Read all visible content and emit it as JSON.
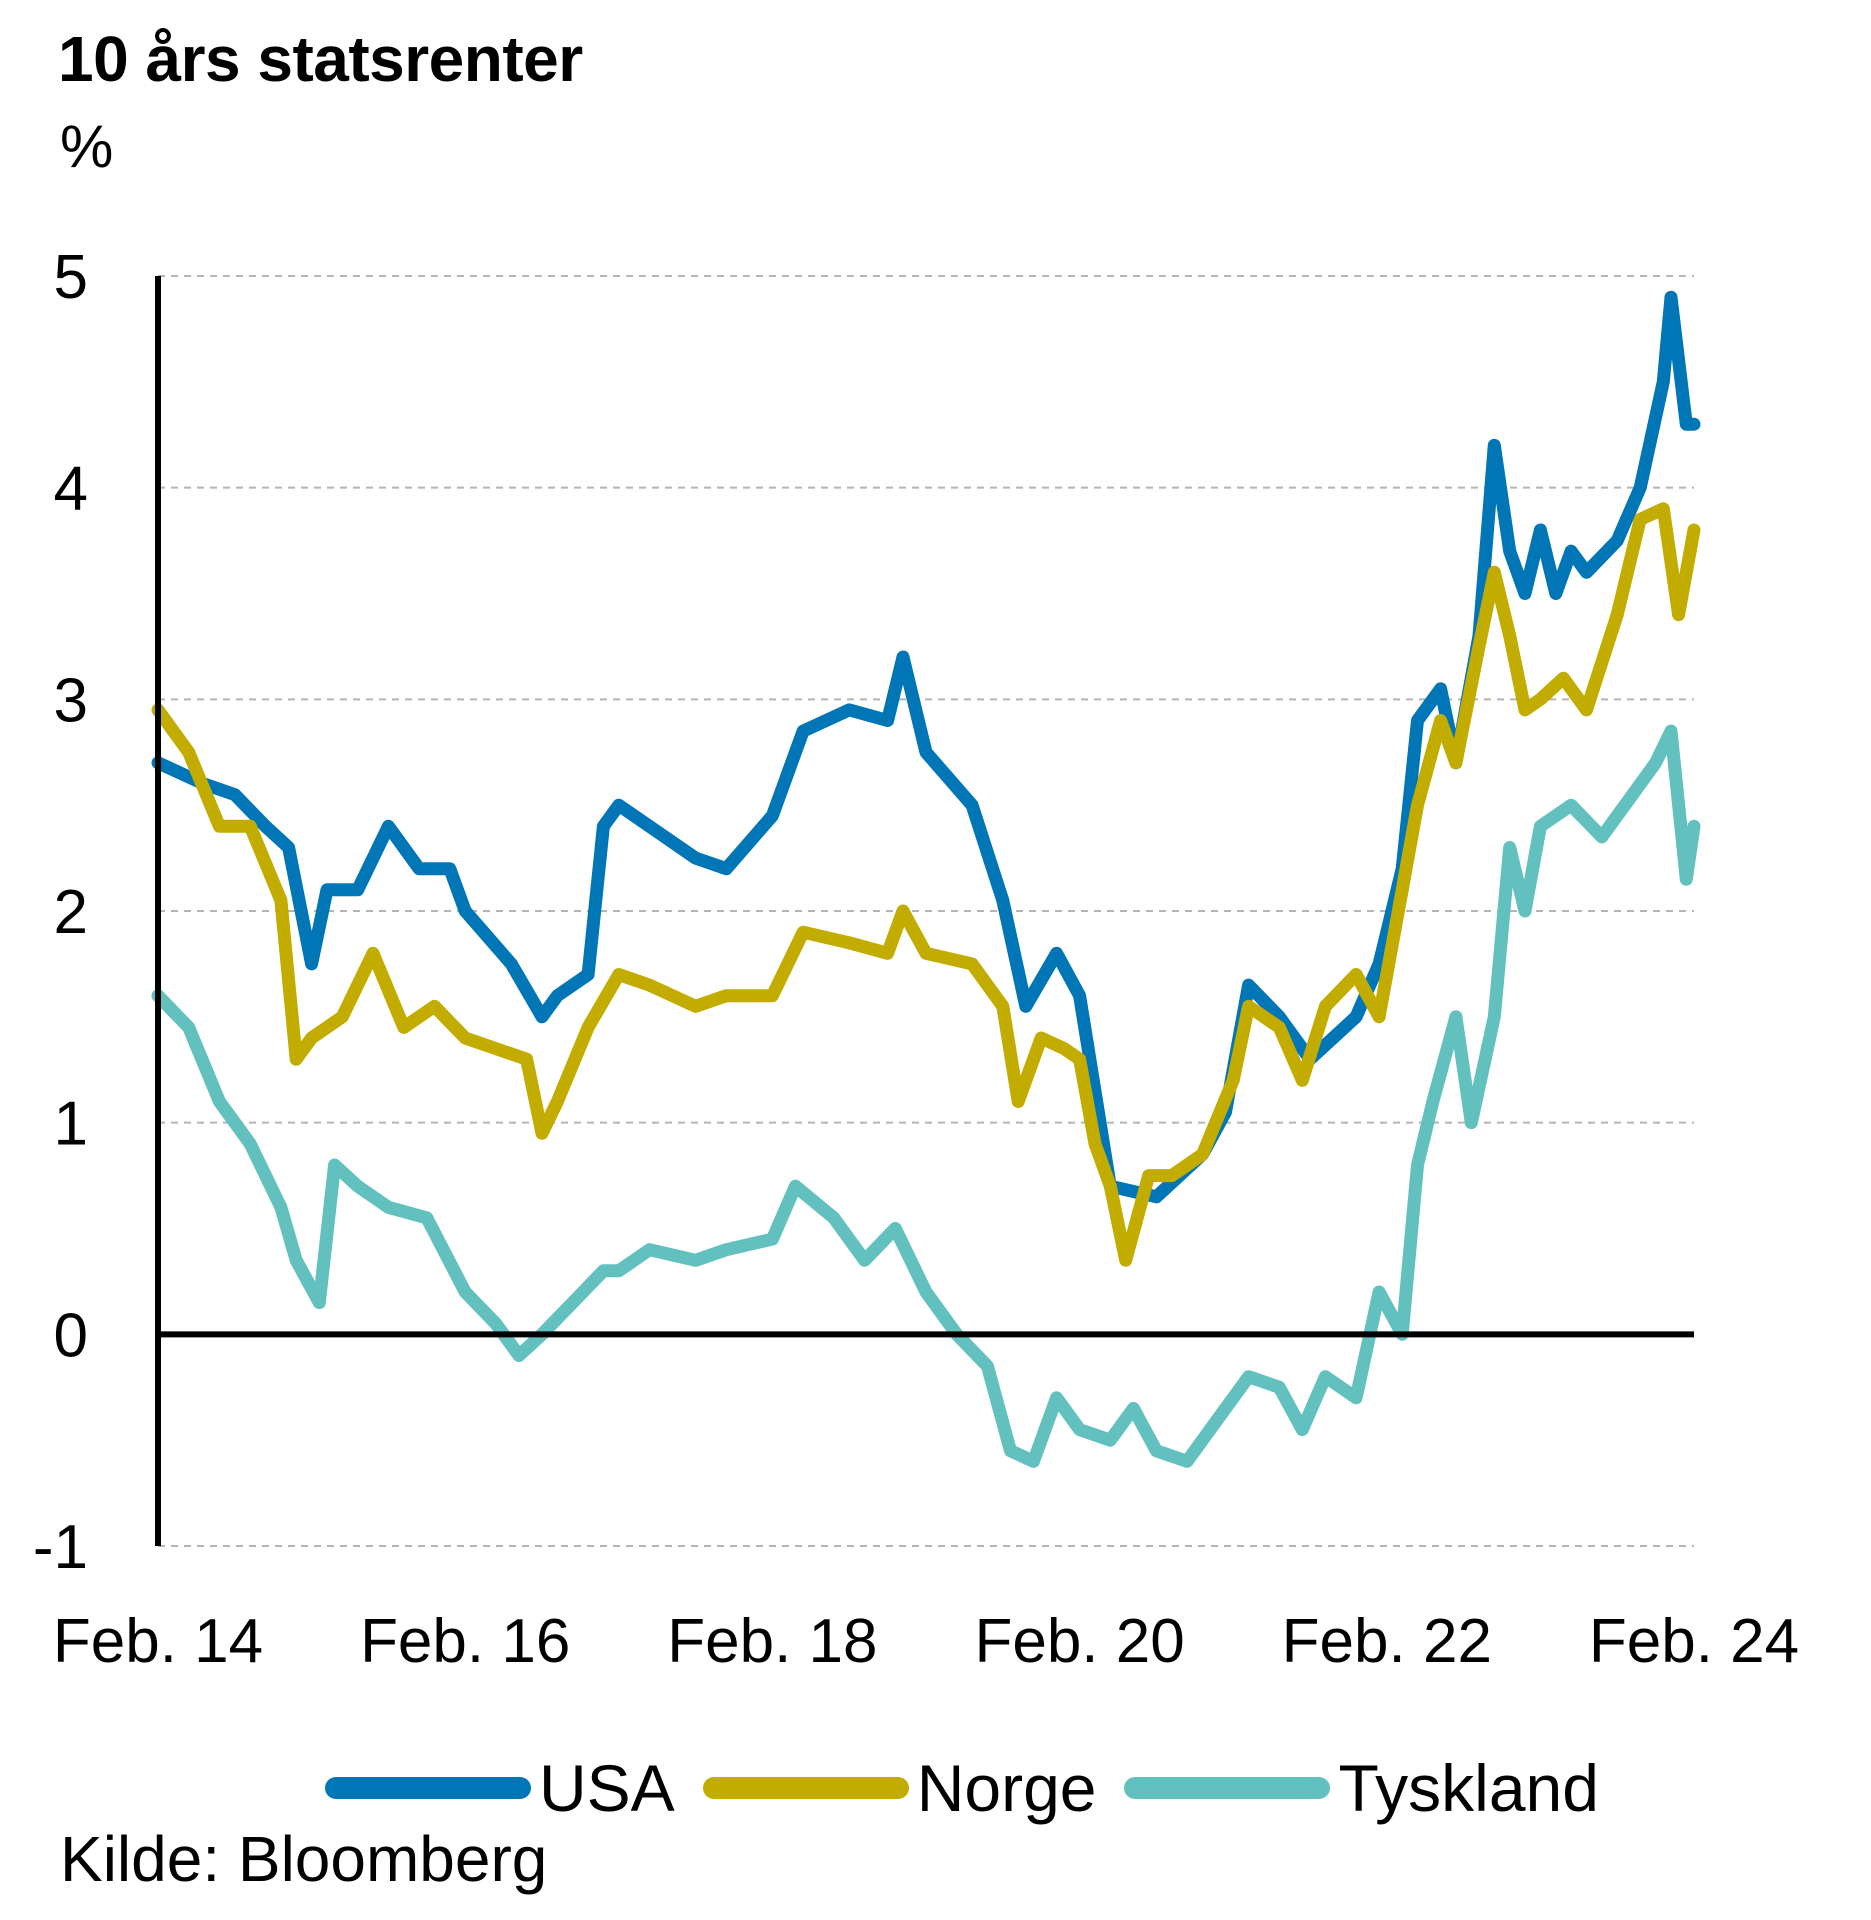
{
  "chart_data": {
    "type": "line",
    "title": "10 års statsrenter",
    "ylabel": "%",
    "xlabel": "",
    "yticks": [
      "5",
      "4",
      "3",
      "2",
      "1",
      "0",
      "-1"
    ],
    "ylim": [
      -1,
      5
    ],
    "xticks": [
      "Feb. 14",
      "Feb. 16",
      "Feb. 18",
      "Feb. 20",
      "Feb. 22",
      "Feb. 24"
    ],
    "xlim": [
      2014.0,
      2024.0
    ],
    "grid": "horizontal dashed",
    "legend_position": "bottom",
    "series": [
      {
        "name": "USA",
        "color": "#0076b6",
        "points": [
          [
            2014.0,
            2.7
          ],
          [
            2014.3,
            2.6
          ],
          [
            2014.5,
            2.55
          ],
          [
            2014.7,
            2.4
          ],
          [
            2014.85,
            2.3
          ],
          [
            2015.0,
            1.75
          ],
          [
            2015.1,
            2.1
          ],
          [
            2015.3,
            2.1
          ],
          [
            2015.5,
            2.4
          ],
          [
            2015.7,
            2.2
          ],
          [
            2015.9,
            2.2
          ],
          [
            2016.0,
            2.0
          ],
          [
            2016.3,
            1.75
          ],
          [
            2016.5,
            1.5
          ],
          [
            2016.6,
            1.6
          ],
          [
            2016.8,
            1.7
          ],
          [
            2016.9,
            2.4
          ],
          [
            2017.0,
            2.5
          ],
          [
            2017.2,
            2.4
          ],
          [
            2017.5,
            2.25
          ],
          [
            2017.7,
            2.2
          ],
          [
            2018.0,
            2.45
          ],
          [
            2018.2,
            2.85
          ],
          [
            2018.5,
            2.95
          ],
          [
            2018.75,
            2.9
          ],
          [
            2018.85,
            3.2
          ],
          [
            2019.0,
            2.75
          ],
          [
            2019.3,
            2.5
          ],
          [
            2019.5,
            2.05
          ],
          [
            2019.65,
            1.55
          ],
          [
            2019.85,
            1.8
          ],
          [
            2020.0,
            1.6
          ],
          [
            2020.2,
            0.7
          ],
          [
            2020.5,
            0.65
          ],
          [
            2020.8,
            0.85
          ],
          [
            2020.95,
            1.05
          ],
          [
            2021.1,
            1.65
          ],
          [
            2021.3,
            1.5
          ],
          [
            2021.5,
            1.3
          ],
          [
            2021.8,
            1.5
          ],
          [
            2021.95,
            1.75
          ],
          [
            2022.1,
            2.2
          ],
          [
            2022.2,
            2.9
          ],
          [
            2022.35,
            3.05
          ],
          [
            2022.45,
            2.7
          ],
          [
            2022.6,
            3.3
          ],
          [
            2022.7,
            4.2
          ],
          [
            2022.8,
            3.7
          ],
          [
            2022.9,
            3.5
          ],
          [
            2023.0,
            3.8
          ],
          [
            2023.1,
            3.5
          ],
          [
            2023.2,
            3.7
          ],
          [
            2023.3,
            3.6
          ],
          [
            2023.5,
            3.75
          ],
          [
            2023.65,
            4.0
          ],
          [
            2023.8,
            4.5
          ],
          [
            2023.85,
            4.9
          ],
          [
            2023.95,
            4.3
          ],
          [
            2024.0,
            4.3
          ]
        ]
      },
      {
        "name": "Norge",
        "color": "#c2ac00",
        "points": [
          [
            2014.0,
            2.95
          ],
          [
            2014.2,
            2.75
          ],
          [
            2014.4,
            2.4
          ],
          [
            2014.6,
            2.4
          ],
          [
            2014.8,
            2.05
          ],
          [
            2014.9,
            1.3
          ],
          [
            2015.0,
            1.4
          ],
          [
            2015.2,
            1.5
          ],
          [
            2015.4,
            1.8
          ],
          [
            2015.6,
            1.45
          ],
          [
            2015.8,
            1.55
          ],
          [
            2016.0,
            1.4
          ],
          [
            2016.2,
            1.35
          ],
          [
            2016.4,
            1.3
          ],
          [
            2016.5,
            0.95
          ],
          [
            2016.6,
            1.1
          ],
          [
            2016.8,
            1.45
          ],
          [
            2017.0,
            1.7
          ],
          [
            2017.2,
            1.65
          ],
          [
            2017.5,
            1.55
          ],
          [
            2017.7,
            1.6
          ],
          [
            2018.0,
            1.6
          ],
          [
            2018.2,
            1.9
          ],
          [
            2018.5,
            1.85
          ],
          [
            2018.75,
            1.8
          ],
          [
            2018.85,
            2.0
          ],
          [
            2019.0,
            1.8
          ],
          [
            2019.3,
            1.75
          ],
          [
            2019.5,
            1.55
          ],
          [
            2019.6,
            1.1
          ],
          [
            2019.75,
            1.4
          ],
          [
            2019.9,
            1.35
          ],
          [
            2020.0,
            1.3
          ],
          [
            2020.1,
            0.9
          ],
          [
            2020.2,
            0.7
          ],
          [
            2020.3,
            0.35
          ],
          [
            2020.45,
            0.75
          ],
          [
            2020.6,
            0.75
          ],
          [
            2020.8,
            0.85
          ],
          [
            2021.0,
            1.2
          ],
          [
            2021.1,
            1.55
          ],
          [
            2021.3,
            1.45
          ],
          [
            2021.45,
            1.2
          ],
          [
            2021.6,
            1.55
          ],
          [
            2021.8,
            1.7
          ],
          [
            2021.95,
            1.5
          ],
          [
            2022.1,
            2.1
          ],
          [
            2022.2,
            2.5
          ],
          [
            2022.35,
            2.9
          ],
          [
            2022.45,
            2.7
          ],
          [
            2022.6,
            3.25
          ],
          [
            2022.7,
            3.6
          ],
          [
            2022.8,
            3.3
          ],
          [
            2022.9,
            2.95
          ],
          [
            2023.0,
            3.0
          ],
          [
            2023.15,
            3.1
          ],
          [
            2023.3,
            2.95
          ],
          [
            2023.5,
            3.4
          ],
          [
            2023.65,
            3.85
          ],
          [
            2023.8,
            3.9
          ],
          [
            2023.9,
            3.4
          ],
          [
            2024.0,
            3.8
          ]
        ]
      },
      {
        "name": "Tyskland",
        "color": "#62c1bf",
        "points": [
          [
            2014.0,
            1.6
          ],
          [
            2014.2,
            1.45
          ],
          [
            2014.4,
            1.1
          ],
          [
            2014.6,
            0.9
          ],
          [
            2014.8,
            0.6
          ],
          [
            2014.9,
            0.35
          ],
          [
            2015.05,
            0.15
          ],
          [
            2015.15,
            0.8
          ],
          [
            2015.3,
            0.7
          ],
          [
            2015.5,
            0.6
          ],
          [
            2015.75,
            0.55
          ],
          [
            2016.0,
            0.2
          ],
          [
            2016.2,
            0.05
          ],
          [
            2016.35,
            -0.1
          ],
          [
            2016.5,
            0.0
          ],
          [
            2016.7,
            0.15
          ],
          [
            2016.9,
            0.3
          ],
          [
            2017.0,
            0.3
          ],
          [
            2017.2,
            0.4
          ],
          [
            2017.5,
            0.35
          ],
          [
            2017.7,
            0.4
          ],
          [
            2018.0,
            0.45
          ],
          [
            2018.15,
            0.7
          ],
          [
            2018.4,
            0.55
          ],
          [
            2018.6,
            0.35
          ],
          [
            2018.8,
            0.5
          ],
          [
            2019.0,
            0.2
          ],
          [
            2019.2,
            0.0
          ],
          [
            2019.4,
            -0.15
          ],
          [
            2019.55,
            -0.55
          ],
          [
            2019.7,
            -0.6
          ],
          [
            2019.85,
            -0.3
          ],
          [
            2020.0,
            -0.45
          ],
          [
            2020.2,
            -0.5
          ],
          [
            2020.35,
            -0.35
          ],
          [
            2020.5,
            -0.55
          ],
          [
            2020.7,
            -0.6
          ],
          [
            2020.9,
            -0.4
          ],
          [
            2021.1,
            -0.2
          ],
          [
            2021.3,
            -0.25
          ],
          [
            2021.45,
            -0.45
          ],
          [
            2021.6,
            -0.2
          ],
          [
            2021.8,
            -0.3
          ],
          [
            2021.95,
            0.2
          ],
          [
            2022.1,
            0.0
          ],
          [
            2022.2,
            0.8
          ],
          [
            2022.3,
            1.1
          ],
          [
            2022.45,
            1.5
          ],
          [
            2022.55,
            1.0
          ],
          [
            2022.7,
            1.5
          ],
          [
            2022.8,
            2.3
          ],
          [
            2022.9,
            2.0
          ],
          [
            2023.0,
            2.4
          ],
          [
            2023.2,
            2.5
          ],
          [
            2023.4,
            2.35
          ],
          [
            2023.6,
            2.55
          ],
          [
            2023.75,
            2.7
          ],
          [
            2023.85,
            2.85
          ],
          [
            2023.95,
            2.15
          ],
          [
            2024.0,
            2.4
          ]
        ]
      }
    ]
  },
  "source": "Kilde: Bloomberg"
}
